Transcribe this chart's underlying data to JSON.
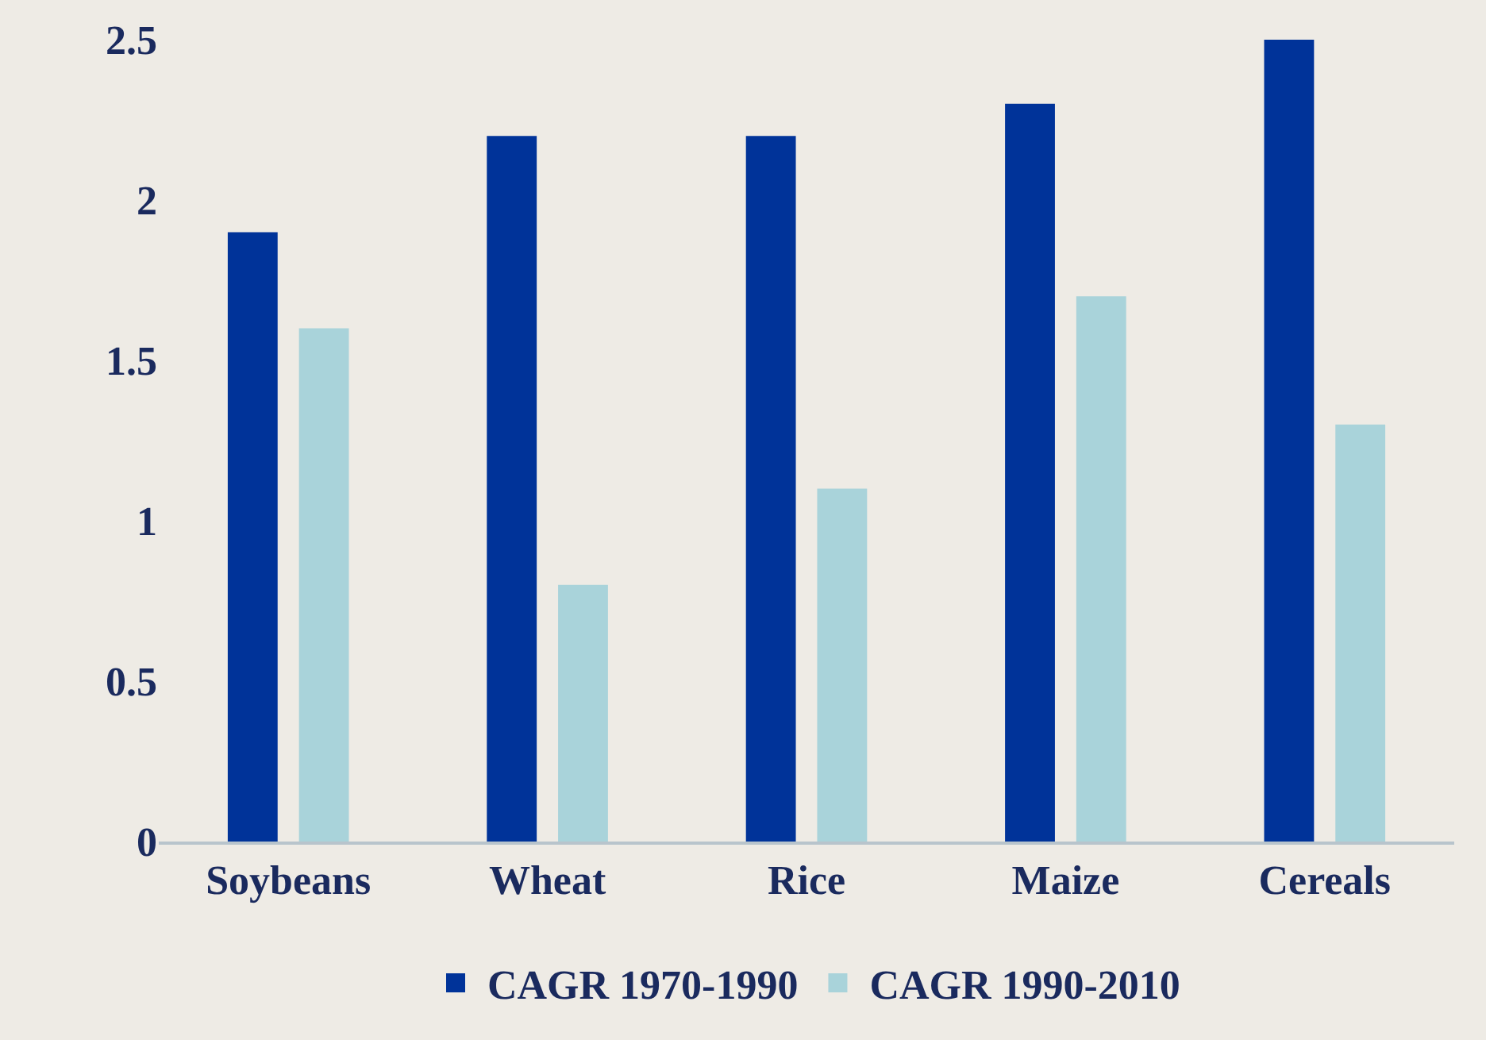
{
  "chart_data": {
    "type": "bar",
    "categories": [
      "Soybeans",
      "Wheat",
      "Rice",
      "Maize",
      "Cereals"
    ],
    "series": [
      {
        "name": "CAGR 1970-1990",
        "color": "#003399",
        "values": [
          1.9,
          2.2,
          2.2,
          2.3,
          2.5
        ]
      },
      {
        "name": "CAGR 1990-2010",
        "color": "#a9d3da",
        "values": [
          1.6,
          0.8,
          1.1,
          1.7,
          1.3
        ]
      }
    ],
    "ylim": [
      0,
      2.5
    ],
    "yticks": [
      0,
      0.5,
      1,
      1.5,
      2,
      2.5
    ],
    "grid": false,
    "legend": "bottom"
  }
}
